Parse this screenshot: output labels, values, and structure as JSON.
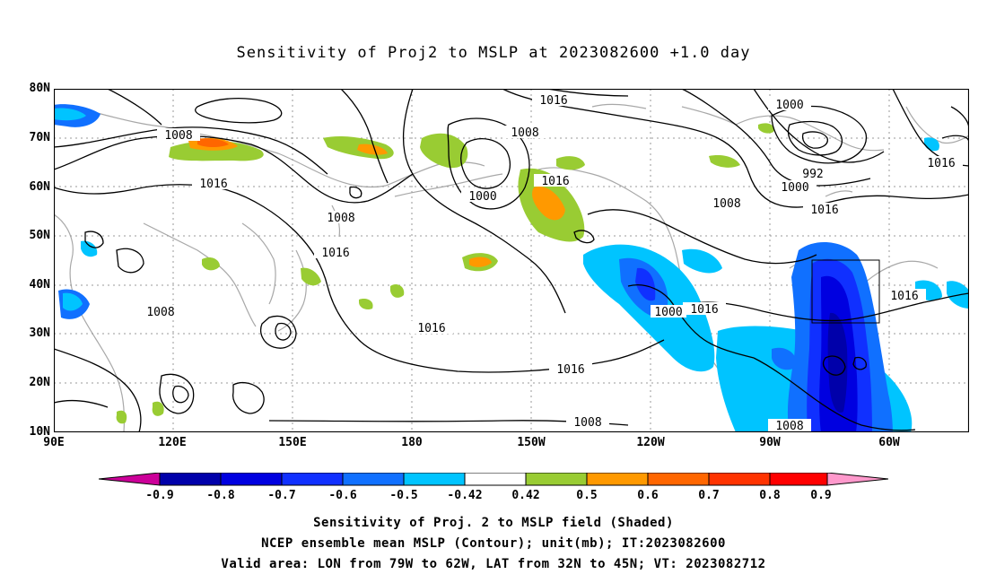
{
  "title": "Sensitivity of Proj2 to MSLP at 2023082600 +1.0 day",
  "lat_labels": [
    "80N",
    "70N",
    "60N",
    "50N",
    "40N",
    "30N",
    "20N",
    "10N"
  ],
  "lon_labels": [
    "90E",
    "120E",
    "150E",
    "180",
    "150W",
    "120W",
    "90W",
    "60W"
  ],
  "contour_labels": [
    "1016",
    "1008",
    "1016",
    "1008",
    "1000",
    "1016",
    "1000",
    "992",
    "1000",
    "1008",
    "1016",
    "1008",
    "1016",
    "1016",
    "1008",
    "1016",
    "1016",
    "1016",
    "1016",
    "1000",
    "1008",
    "1008"
  ],
  "colorbar": {
    "labels": [
      "-0.9",
      "-0.8",
      "-0.7",
      "-0.6",
      "-0.5",
      "-0.42",
      "0.42",
      "0.5",
      "0.6",
      "0.7",
      "0.8",
      "0.9"
    ],
    "colors": {
      "lt_-0.9": "#cc0099",
      "-0.9_-0.8": "#0000aa",
      "-0.8_-0.7": "#0000e0",
      "-0.7_-0.6": "#1030ff",
      "-0.6_-0.5": "#1070ff",
      "-0.5_-0.42": "#00c4ff",
      "-0.42_0.42": "#ffffff",
      "0.42_0.5": "#99cc33",
      "0.5_0.6": "#ff9900",
      "0.6_0.7": "#ff6600",
      "0.7_0.8": "#ff3300",
      "0.8_0.9": "#ff0000",
      "gt_0.9": "#ff99cc"
    }
  },
  "footer": [
    "Sensitivity of Proj. 2 to MSLP field (Shaded)",
    "NCEP ensemble mean MSLP (Contour); unit(mb); IT:2023082600",
    "Valid area: LON from 79W to 62W, LAT from 32N to 45N; VT: 2023082712"
  ]
}
